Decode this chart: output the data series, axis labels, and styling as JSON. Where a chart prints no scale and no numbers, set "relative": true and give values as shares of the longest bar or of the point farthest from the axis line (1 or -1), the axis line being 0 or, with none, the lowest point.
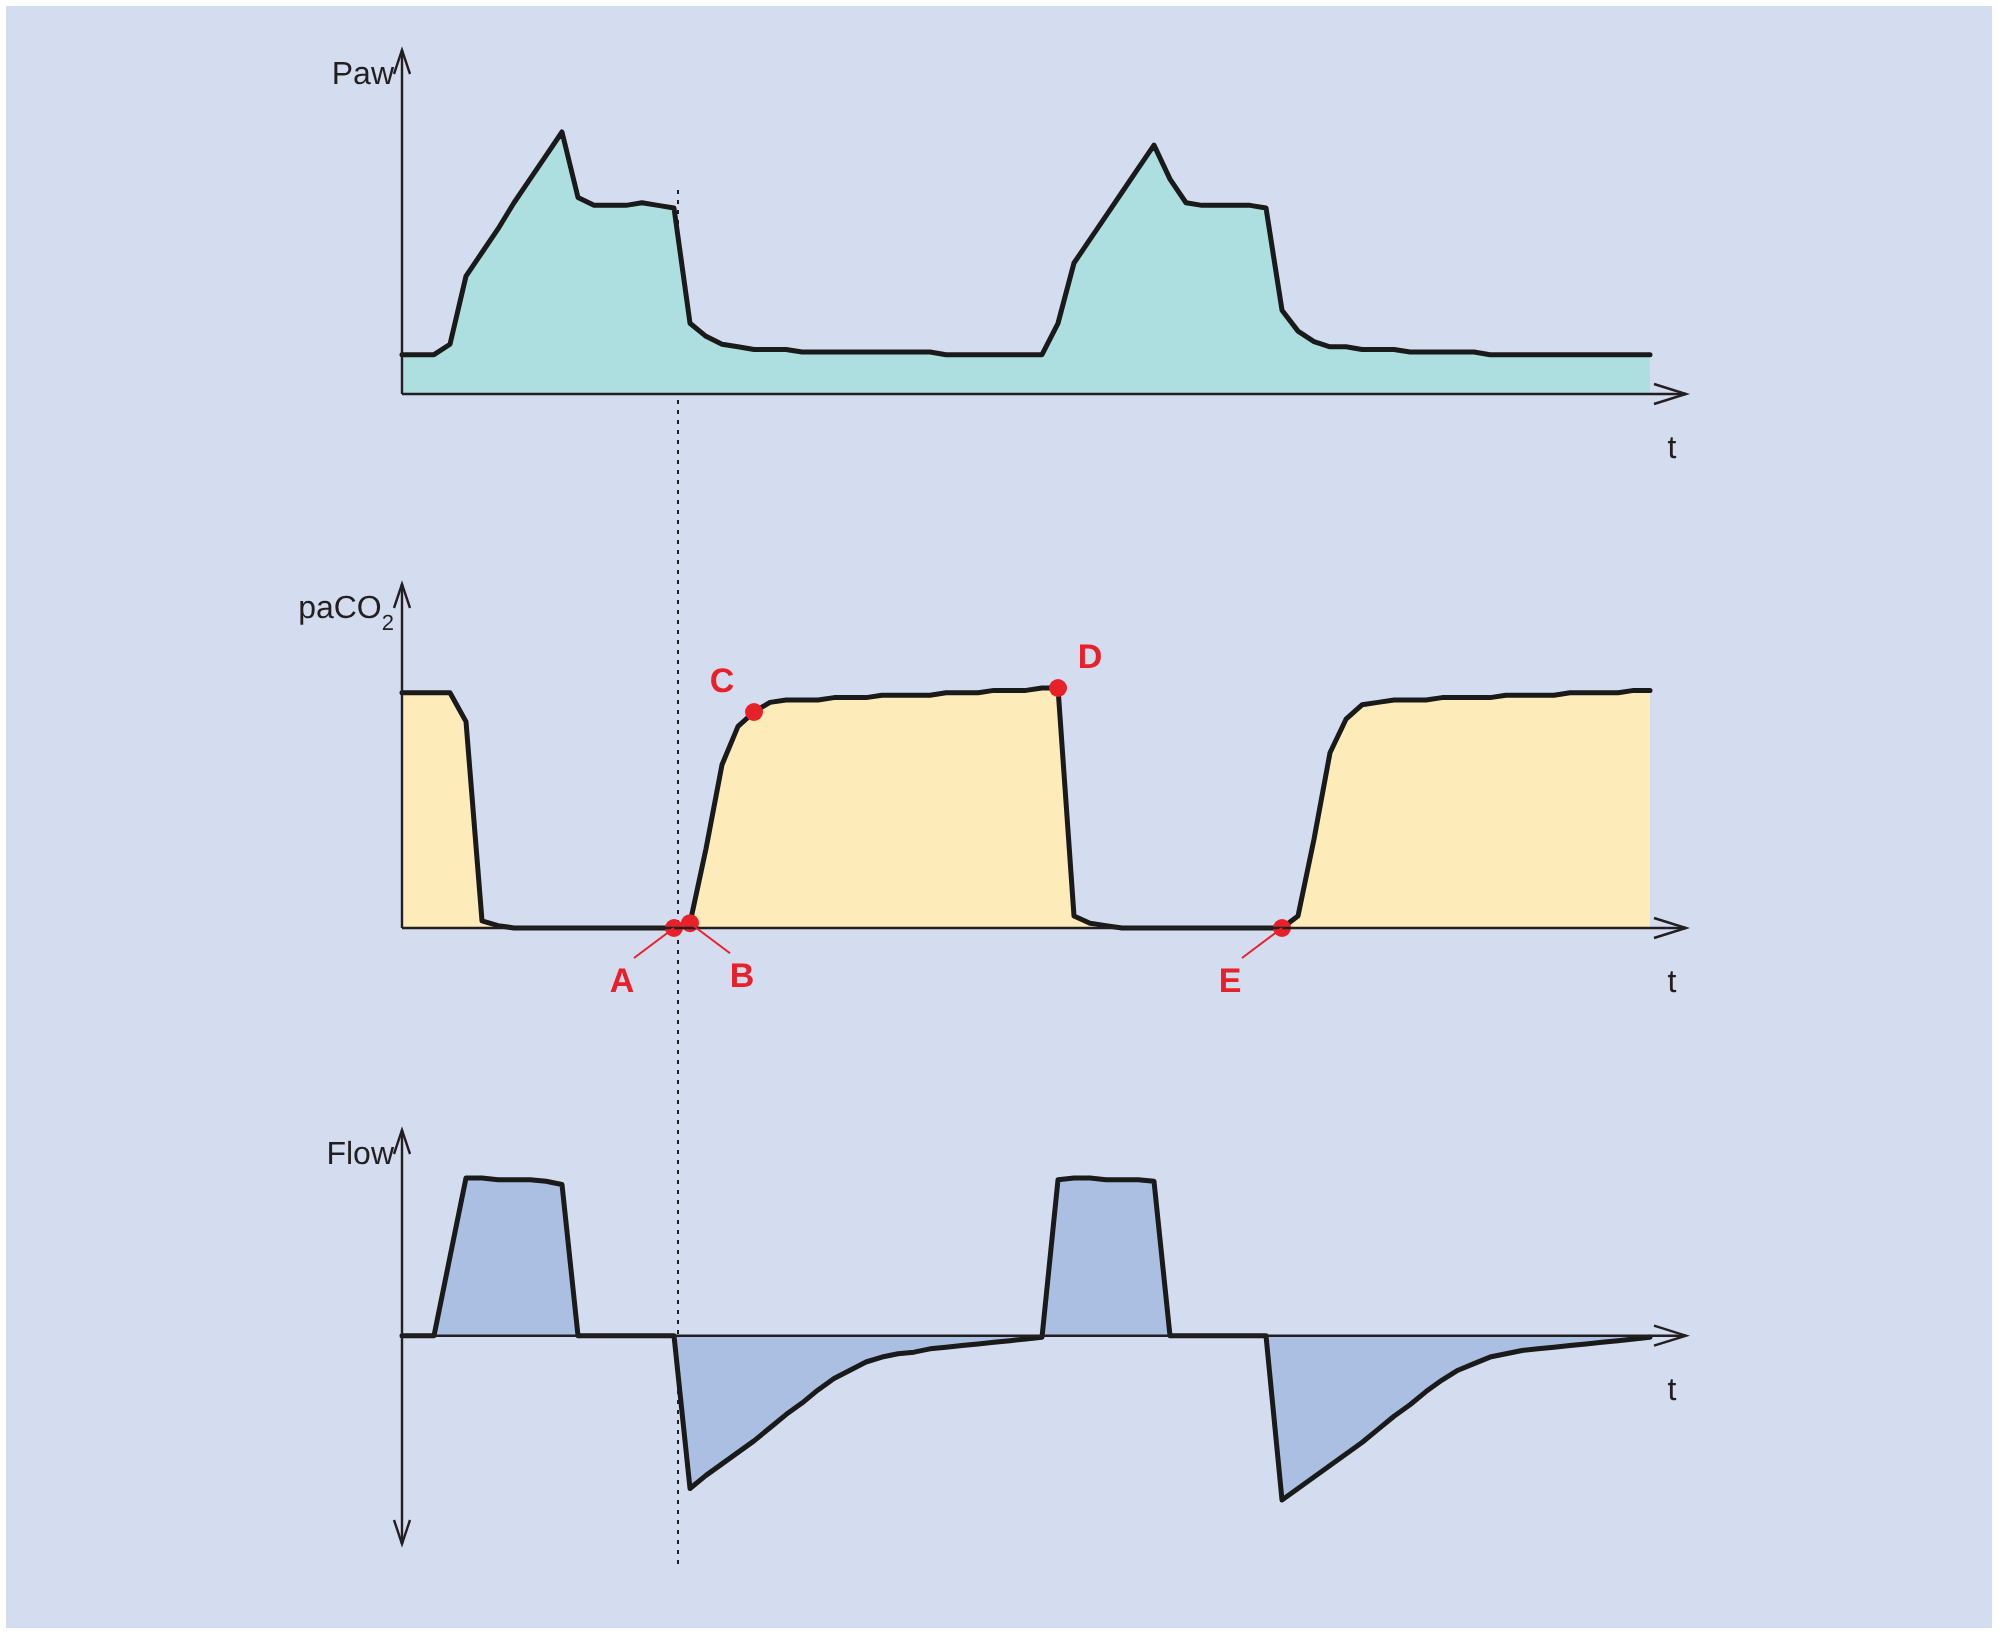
{
  "chart_data": [
    {
      "type": "area",
      "ylabel": "Paw",
      "xlabel": "t",
      "relative": true,
      "categories": [
        null,
        null,
        null,
        null,
        null,
        null,
        null,
        null,
        null,
        null,
        null,
        null,
        null,
        null,
        null,
        null,
        null,
        null,
        null,
        null,
        null,
        null,
        null,
        null,
        null,
        null,
        null,
        null,
        null,
        null,
        null,
        null,
        null,
        null,
        null,
        null,
        null,
        null,
        null,
        null,
        null,
        null,
        null,
        null,
        null,
        null,
        null,
        null,
        null,
        null,
        null,
        null,
        null,
        null,
        null,
        null,
        null,
        null,
        null,
        null,
        null,
        null,
        null,
        null,
        null,
        null,
        null,
        null,
        null,
        null,
        null,
        null,
        null,
        null,
        null,
        null,
        null,
        null,
        null
      ],
      "series": [
        {
          "color": "#aedfe0",
          "values": [
            0.15,
            0.15,
            0.15,
            0.19,
            0.45,
            0.54,
            0.63,
            0.73,
            0.82,
            0.91,
            1,
            0.75,
            0.72,
            0.72,
            0.72,
            0.73,
            0.72,
            0.71,
            0.27,
            0.22,
            0.19,
            0.18,
            0.17,
            0.17,
            0.17,
            0.16,
            0.16,
            0.16,
            0.16,
            0.16,
            0.16,
            0.16,
            0.16,
            0.16,
            0.15,
            0.15,
            0.15,
            0.15,
            0.15,
            0.15,
            0.15,
            0.27,
            0.5,
            0.59,
            0.68,
            0.77,
            0.86,
            0.95,
            0.82,
            0.73,
            0.72,
            0.72,
            0.72,
            0.72,
            0.71,
            0.32,
            0.24,
            0.2,
            0.18,
            0.18,
            0.17,
            0.17,
            0.17,
            0.16,
            0.16,
            0.16,
            0.16,
            0.16,
            0.15,
            0.15,
            0.15,
            0.15,
            0.15,
            0.15,
            0.15,
            0.15,
            0.15,
            0.15,
            0.15
          ]
        }
      ]
    },
    {
      "type": "area",
      "ylabel": "paCO$_{2}$",
      "xlabel": "t",
      "relative": true,
      "categories": [
        null,
        null,
        null,
        null,
        null,
        null,
        null,
        null,
        null,
        null,
        null,
        null,
        null,
        null,
        null,
        null,
        null,
        null,
        null,
        null,
        null,
        null,
        null,
        null,
        null,
        null,
        null,
        null,
        null,
        null,
        null,
        null,
        null,
        null,
        null,
        null,
        null,
        null,
        null,
        null,
        null,
        null,
        null,
        null,
        null,
        null,
        null,
        null,
        null,
        null,
        null,
        null,
        null,
        null,
        null,
        null,
        null,
        null,
        null,
        null,
        null,
        null,
        null,
        null,
        null,
        null,
        null,
        null,
        null,
        null,
        null,
        null,
        null,
        null,
        null,
        null,
        null,
        null,
        null
      ],
      "series": [
        {
          "color": "#fdebb9",
          "values": [
            0.98,
            0.98,
            0.98,
            0.98,
            0.86,
            0.03,
            0.01,
            0,
            0,
            0,
            0,
            0,
            0,
            0,
            0,
            0,
            0,
            0,
            0.02,
            0.33,
            0.68,
            0.84,
            0.9,
            0.94,
            0.95,
            0.95,
            0.95,
            0.96,
            0.96,
            0.96,
            0.97,
            0.97,
            0.97,
            0.97,
            0.98,
            0.98,
            0.98,
            0.99,
            0.99,
            0.99,
            1,
            1,
            0.05,
            0.02,
            0.01,
            0,
            0,
            0,
            0,
            0,
            0,
            0,
            0,
            0,
            0,
            0,
            0.05,
            0.37,
            0.73,
            0.87,
            0.93,
            0.94,
            0.95,
            0.95,
            0.95,
            0.96,
            0.96,
            0.96,
            0.96,
            0.97,
            0.97,
            0.97,
            0.97,
            0.98,
            0.98,
            0.98,
            0.98,
            0.99,
            0.99
          ]
        },
        {
          "type": "scatter",
          "color": "#e8202a",
          "marker": "circle",
          "values": [
            null,
            null,
            null,
            null,
            null,
            null,
            null,
            null,
            null,
            null,
            null,
            null,
            null,
            null,
            null,
            null,
            null,
            0,
            0.02,
            null,
            null,
            null,
            0.9,
            null,
            null,
            null,
            null,
            null,
            null,
            null,
            null,
            null,
            null,
            null,
            null,
            null,
            null,
            null,
            null,
            null,
            null,
            1,
            null,
            null,
            null,
            null,
            null,
            null,
            null,
            null,
            null,
            null,
            null,
            null,
            null,
            0,
            null,
            null,
            null,
            null,
            null,
            null,
            null,
            null,
            null,
            null,
            null,
            null,
            null,
            null,
            null,
            null,
            null,
            null,
            null,
            null,
            null,
            null,
            null
          ]
        }
      ],
      "annotations": [
        "A",
        "B",
        "C",
        "D",
        "E"
      ]
    },
    {
      "type": "area",
      "ylabel": "Flow",
      "xlabel": "t",
      "relative": true,
      "categories": [
        null,
        null,
        null,
        null,
        null,
        null,
        null,
        null,
        null,
        null,
        null,
        null,
        null,
        null,
        null,
        null,
        null,
        null,
        null,
        null,
        null,
        null,
        null,
        null,
        null,
        null,
        null,
        null,
        null,
        null,
        null,
        null,
        null,
        null,
        null,
        null,
        null,
        null,
        null,
        null,
        null,
        null,
        null,
        null,
        null,
        null,
        null,
        null,
        null,
        null,
        null,
        null,
        null,
        null,
        null,
        null,
        null,
        null,
        null,
        null,
        null,
        null,
        null,
        null,
        null,
        null,
        null,
        null,
        null,
        null,
        null,
        null,
        null,
        null,
        null,
        null,
        null,
        null,
        null
      ],
      "series": [
        {
          "color": "#abbfe3",
          "values": [
            0,
            0,
            0,
            0.48,
            0.96,
            0.96,
            0.95,
            0.95,
            0.95,
            0.94,
            0.92,
            0,
            0,
            0,
            0,
            0,
            0,
            0,
            -0.93,
            -0.85,
            -0.78,
            -0.71,
            -0.64,
            -0.56,
            -0.48,
            -0.41,
            -0.33,
            -0.26,
            -0.21,
            -0.16,
            -0.13,
            -0.11,
            -0.1,
            -0.08,
            -0.07,
            -0.06,
            -0.05,
            -0.04,
            -0.03,
            -0.02,
            -0.01,
            0.95,
            0.96,
            0.96,
            0.95,
            0.95,
            0.95,
            0.94,
            0,
            0,
            0,
            0,
            0,
            0,
            0,
            -1,
            -0.93,
            -0.86,
            -0.79,
            -0.72,
            -0.65,
            -0.57,
            -0.49,
            -0.42,
            -0.34,
            -0.27,
            -0.21,
            -0.17,
            -0.13,
            -0.11,
            -0.09,
            -0.08,
            -0.07,
            -0.06,
            -0.05,
            -0.04,
            -0.03,
            -0.02,
            -0.01
          ]
        }
      ]
    }
  ]
}
